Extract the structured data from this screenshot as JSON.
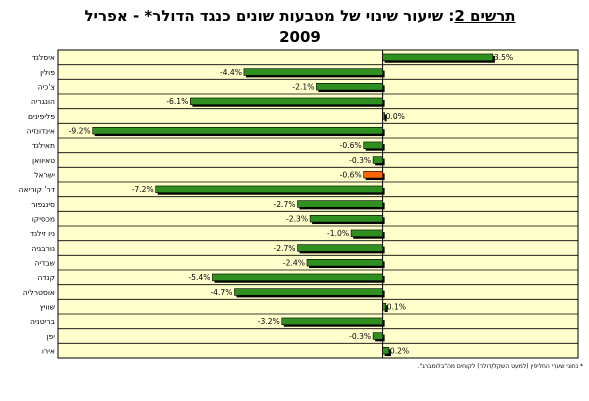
{
  "title": {
    "prefix": "תרשים 2",
    "separator": ": ",
    "text": "שיעור שינוי של מטבעות שונים כנגד הדולר* - אפריל",
    "year": "2009"
  },
  "footnote": "* נתוני שערי החליפין (למעט השקל/דולר) לקוחים מה\"בלומברג\".",
  "colors": {
    "plot_background": "#FFFFCC",
    "bar_default": "#2F8F1F",
    "bar_highlight": "#FF6600",
    "bar_outline": "#000000",
    "bar_shadow": "#000000"
  },
  "chart_data": {
    "type": "bar",
    "orientation": "horizontal",
    "categories": [
      "איסלנד",
      "פולין",
      "צ'כיה",
      "הונגריה",
      "פליפינים",
      "אינדונזיה",
      "תאילנד",
      "טאיוואן",
      "ישראל",
      "דר' קוריאה",
      "סינגפור",
      "מכסיקו",
      "ניו זילנד",
      "נורבגיה",
      "שבדיה",
      "קנדה",
      "אוסטרליה",
      "שוויץ",
      "בריטניה",
      "יפן",
      "אירו"
    ],
    "values": [
      3.5,
      -4.4,
      -2.1,
      -6.1,
      0.0,
      -9.2,
      -0.6,
      -0.3,
      -0.6,
      -7.2,
      -2.7,
      -2.3,
      -1.0,
      -2.7,
      -2.4,
      -5.4,
      -4.7,
      0.1,
      -3.2,
      -0.3,
      0.2
    ],
    "labels": [
      "3.5%",
      "-4.4%",
      "-2.1%",
      "-6.1%",
      "0.0%",
      "-9.2%",
      "-0.6%",
      "-0.3%",
      "-0.6%",
      "-7.2%",
      "-2.7%",
      "-2.3%",
      "-1.0%",
      "-2.7%",
      "-2.4%",
      "-5.4%",
      "-4.7%",
      "0.1%",
      "-3.2%",
      "-0.3%",
      "0.2%"
    ],
    "highlight_category": "ישראל",
    "xlim": [
      -10.3,
      6.2
    ],
    "grid": true,
    "legend": "none"
  }
}
